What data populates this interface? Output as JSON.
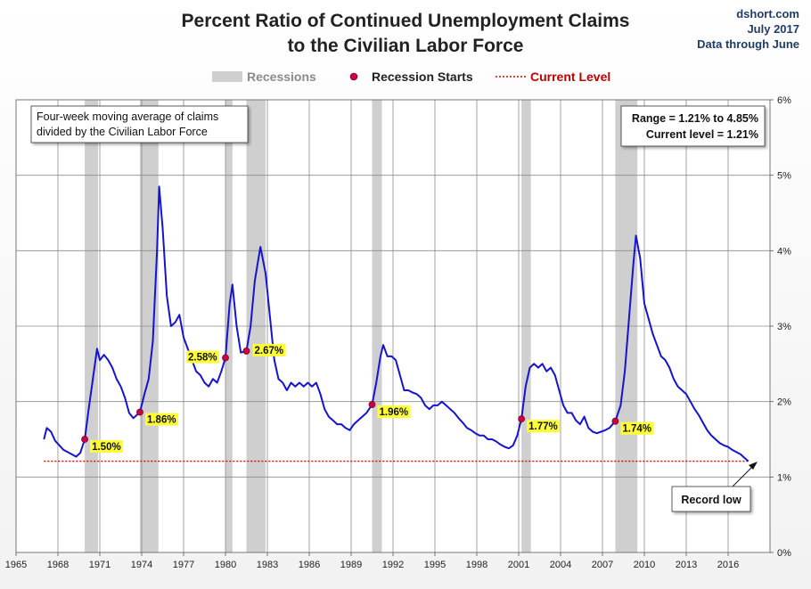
{
  "header": {
    "title_line1": "Percent Ratio of Continued Unemployment Claims",
    "title_line2": "to the Civilian Labor Force",
    "source_line1": "dshort.com",
    "source_line2": "July 2017",
    "source_line3": "Data through June"
  },
  "legend": {
    "recessions": "Recessions",
    "recession_starts": "Recession Starts",
    "current_level": "Current Level",
    "placement": "top-center"
  },
  "notes": {
    "desc_line1": "Four-week moving average of claims",
    "desc_line2": "divided by the Civilian Labor Force",
    "range_line": "Range = 1.21% to 4.85%",
    "current_line": "Current level = 1.21%",
    "record_low": "Record low"
  },
  "colors": {
    "line": "#1414d2",
    "recession": "#cfcfcf",
    "marker": "#c8004c",
    "current": "#e00000",
    "label_bg": "#ffff33"
  },
  "chart_data": {
    "type": "line",
    "title": "Percent Ratio of Continued Unemployment Claims to the Civilian Labor Force",
    "xlim": [
      1965,
      2019
    ],
    "ylim": [
      0,
      6
    ],
    "x_ticks": [
      "1965",
      "1968",
      "1971",
      "1974",
      "1977",
      "1980",
      "1983",
      "1986",
      "1989",
      "1992",
      "1995",
      "1998",
      "2001",
      "2004",
      "2007",
      "2010",
      "2013",
      "2016"
    ],
    "y_ticks": [
      "0%",
      "1%",
      "2%",
      "3%",
      "4%",
      "5%",
      "6%"
    ],
    "y_axis_side": "right",
    "grid": {
      "vertical": true,
      "horizontal": true
    },
    "current_level": 1.21,
    "recessions": [
      [
        1969.92,
        1970.87
      ],
      [
        1973.87,
        1975.2
      ],
      [
        1980.0,
        1980.5
      ],
      [
        1981.5,
        1982.87
      ],
      [
        1990.5,
        1991.2
      ],
      [
        2001.2,
        2001.87
      ],
      [
        2007.92,
        2009.5
      ]
    ],
    "recession_starts": [
      {
        "x": 1969.92,
        "y": 1.5,
        "label": "1.50%"
      },
      {
        "x": 1973.87,
        "y": 1.86,
        "label": "1.86%"
      },
      {
        "x": 1980.0,
        "y": 2.58,
        "label": "2.58%"
      },
      {
        "x": 1981.5,
        "y": 2.67,
        "label": "2.67%"
      },
      {
        "x": 1990.5,
        "y": 1.96,
        "label": "1.96%"
      },
      {
        "x": 2001.2,
        "y": 1.77,
        "label": "1.77%"
      },
      {
        "x": 2007.92,
        "y": 1.74,
        "label": "1.74%"
      }
    ],
    "series": [
      {
        "points": [
          [
            1967.0,
            1.5
          ],
          [
            1967.2,
            1.65
          ],
          [
            1967.5,
            1.6
          ],
          [
            1967.8,
            1.48
          ],
          [
            1968.1,
            1.42
          ],
          [
            1968.4,
            1.36
          ],
          [
            1968.7,
            1.33
          ],
          [
            1969.0,
            1.3
          ],
          [
            1969.3,
            1.27
          ],
          [
            1969.6,
            1.32
          ],
          [
            1969.92,
            1.5
          ],
          [
            1970.2,
            1.9
          ],
          [
            1970.5,
            2.3
          ],
          [
            1970.8,
            2.7
          ],
          [
            1971.0,
            2.55
          ],
          [
            1971.3,
            2.62
          ],
          [
            1971.6,
            2.55
          ],
          [
            1971.9,
            2.45
          ],
          [
            1972.2,
            2.3
          ],
          [
            1972.5,
            2.2
          ],
          [
            1972.8,
            2.05
          ],
          [
            1973.1,
            1.85
          ],
          [
            1973.4,
            1.78
          ],
          [
            1973.87,
            1.86
          ],
          [
            1974.2,
            2.1
          ],
          [
            1974.5,
            2.3
          ],
          [
            1974.8,
            2.8
          ],
          [
            1975.1,
            4.0
          ],
          [
            1975.25,
            4.85
          ],
          [
            1975.5,
            4.3
          ],
          [
            1975.8,
            3.4
          ],
          [
            1976.1,
            3.0
          ],
          [
            1976.4,
            3.05
          ],
          [
            1976.7,
            3.15
          ],
          [
            1977.0,
            2.85
          ],
          [
            1977.3,
            2.7
          ],
          [
            1977.6,
            2.55
          ],
          [
            1977.9,
            2.4
          ],
          [
            1978.2,
            2.35
          ],
          [
            1978.5,
            2.25
          ],
          [
            1978.8,
            2.2
          ],
          [
            1979.1,
            2.3
          ],
          [
            1979.4,
            2.25
          ],
          [
            1979.7,
            2.4
          ],
          [
            1980.0,
            2.58
          ],
          [
            1980.3,
            3.3
          ],
          [
            1980.5,
            3.55
          ],
          [
            1980.8,
            3.0
          ],
          [
            1981.1,
            2.65
          ],
          [
            1981.5,
            2.67
          ],
          [
            1981.8,
            3.0
          ],
          [
            1982.1,
            3.6
          ],
          [
            1982.5,
            4.05
          ],
          [
            1982.87,
            3.7
          ],
          [
            1983.2,
            3.1
          ],
          [
            1983.5,
            2.55
          ],
          [
            1983.8,
            2.3
          ],
          [
            1984.1,
            2.25
          ],
          [
            1984.4,
            2.15
          ],
          [
            1984.7,
            2.25
          ],
          [
            1985.0,
            2.2
          ],
          [
            1985.3,
            2.25
          ],
          [
            1985.6,
            2.2
          ],
          [
            1985.9,
            2.25
          ],
          [
            1986.2,
            2.2
          ],
          [
            1986.5,
            2.25
          ],
          [
            1986.8,
            2.1
          ],
          [
            1987.1,
            1.9
          ],
          [
            1987.4,
            1.8
          ],
          [
            1987.7,
            1.75
          ],
          [
            1988.0,
            1.7
          ],
          [
            1988.3,
            1.7
          ],
          [
            1988.6,
            1.65
          ],
          [
            1988.9,
            1.62
          ],
          [
            1989.2,
            1.7
          ],
          [
            1989.5,
            1.75
          ],
          [
            1989.8,
            1.8
          ],
          [
            1990.1,
            1.85
          ],
          [
            1990.5,
            1.96
          ],
          [
            1990.8,
            2.25
          ],
          [
            1991.1,
            2.6
          ],
          [
            1991.3,
            2.75
          ],
          [
            1991.6,
            2.6
          ],
          [
            1991.9,
            2.6
          ],
          [
            1992.2,
            2.55
          ],
          [
            1992.5,
            2.35
          ],
          [
            1992.8,
            2.15
          ],
          [
            1993.1,
            2.15
          ],
          [
            1993.4,
            2.12
          ],
          [
            1993.7,
            2.1
          ],
          [
            1994.0,
            2.05
          ],
          [
            1994.3,
            1.95
          ],
          [
            1994.6,
            1.9
          ],
          [
            1994.9,
            1.95
          ],
          [
            1995.2,
            1.95
          ],
          [
            1995.5,
            2.0
          ],
          [
            1995.8,
            1.95
          ],
          [
            1996.1,
            1.9
          ],
          [
            1996.4,
            1.85
          ],
          [
            1996.7,
            1.78
          ],
          [
            1997.0,
            1.72
          ],
          [
            1997.3,
            1.65
          ],
          [
            1997.6,
            1.62
          ],
          [
            1997.9,
            1.58
          ],
          [
            1998.2,
            1.55
          ],
          [
            1998.5,
            1.55
          ],
          [
            1998.8,
            1.5
          ],
          [
            1999.1,
            1.5
          ],
          [
            1999.4,
            1.47
          ],
          [
            1999.7,
            1.43
          ],
          [
            2000.0,
            1.4
          ],
          [
            2000.3,
            1.38
          ],
          [
            2000.6,
            1.42
          ],
          [
            2000.9,
            1.55
          ],
          [
            2001.2,
            1.77
          ],
          [
            2001.5,
            2.2
          ],
          [
            2001.8,
            2.45
          ],
          [
            2002.1,
            2.5
          ],
          [
            2002.4,
            2.45
          ],
          [
            2002.7,
            2.5
          ],
          [
            2003.0,
            2.4
          ],
          [
            2003.3,
            2.45
          ],
          [
            2003.6,
            2.35
          ],
          [
            2003.9,
            2.15
          ],
          [
            2004.2,
            1.95
          ],
          [
            2004.5,
            1.85
          ],
          [
            2004.8,
            1.85
          ],
          [
            2005.1,
            1.75
          ],
          [
            2005.4,
            1.7
          ],
          [
            2005.7,
            1.8
          ],
          [
            2006.0,
            1.65
          ],
          [
            2006.3,
            1.6
          ],
          [
            2006.6,
            1.58
          ],
          [
            2006.9,
            1.6
          ],
          [
            2007.2,
            1.62
          ],
          [
            2007.5,
            1.65
          ],
          [
            2007.92,
            1.74
          ],
          [
            2008.3,
            1.95
          ],
          [
            2008.6,
            2.4
          ],
          [
            2008.9,
            3.1
          ],
          [
            2009.2,
            3.8
          ],
          [
            2009.4,
            4.2
          ],
          [
            2009.7,
            3.9
          ],
          [
            2010.0,
            3.3
          ],
          [
            2010.3,
            3.1
          ],
          [
            2010.6,
            2.9
          ],
          [
            2010.9,
            2.75
          ],
          [
            2011.2,
            2.6
          ],
          [
            2011.5,
            2.55
          ],
          [
            2011.8,
            2.45
          ],
          [
            2012.1,
            2.3
          ],
          [
            2012.4,
            2.2
          ],
          [
            2012.7,
            2.15
          ],
          [
            2013.0,
            2.1
          ],
          [
            2013.3,
            2.0
          ],
          [
            2013.6,
            1.9
          ],
          [
            2013.9,
            1.82
          ],
          [
            2014.2,
            1.72
          ],
          [
            2014.5,
            1.62
          ],
          [
            2014.8,
            1.55
          ],
          [
            2015.1,
            1.5
          ],
          [
            2015.4,
            1.45
          ],
          [
            2015.7,
            1.42
          ],
          [
            2016.0,
            1.4
          ],
          [
            2016.3,
            1.36
          ],
          [
            2016.6,
            1.33
          ],
          [
            2016.9,
            1.3
          ],
          [
            2017.2,
            1.25
          ],
          [
            2017.45,
            1.21
          ]
        ]
      }
    ]
  }
}
